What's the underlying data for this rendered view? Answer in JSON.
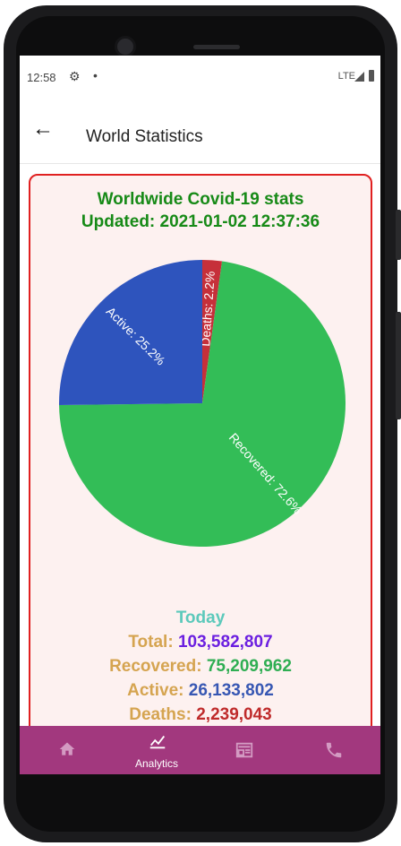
{
  "status_bar": {
    "time": "12:58",
    "network": "LTE"
  },
  "app_bar": {
    "title": "World Statistics"
  },
  "card": {
    "heading_line1": "Worldwide Covid-19 stats",
    "heading_line2": "Updated: 2021-01-02 12:37:36"
  },
  "chart_data": {
    "type": "pie",
    "slices": [
      {
        "label": "Deaths: 2.2%",
        "value": 2.2,
        "color": "#c6303a"
      },
      {
        "label": "Recovered: 72.6%",
        "value": 72.6,
        "color": "#33bd57"
      },
      {
        "label": "Active: 25.2%",
        "value": 25.2,
        "color": "#2e54bd"
      }
    ]
  },
  "today": {
    "title": "Today",
    "total_label": "Total:",
    "total_value": "103,582,807",
    "recovered_label": "Recovered:",
    "recovered_value": "75,209,962",
    "active_label": "Active:",
    "active_value": "26,133,802",
    "deaths_label": "Deaths:",
    "deaths_value": "2,239,043"
  },
  "bottom_nav": {
    "analytics_label": "Analytics"
  },
  "colors": {
    "accent": "#a2387e",
    "card_border": "#e02020",
    "heading": "#178a17"
  }
}
